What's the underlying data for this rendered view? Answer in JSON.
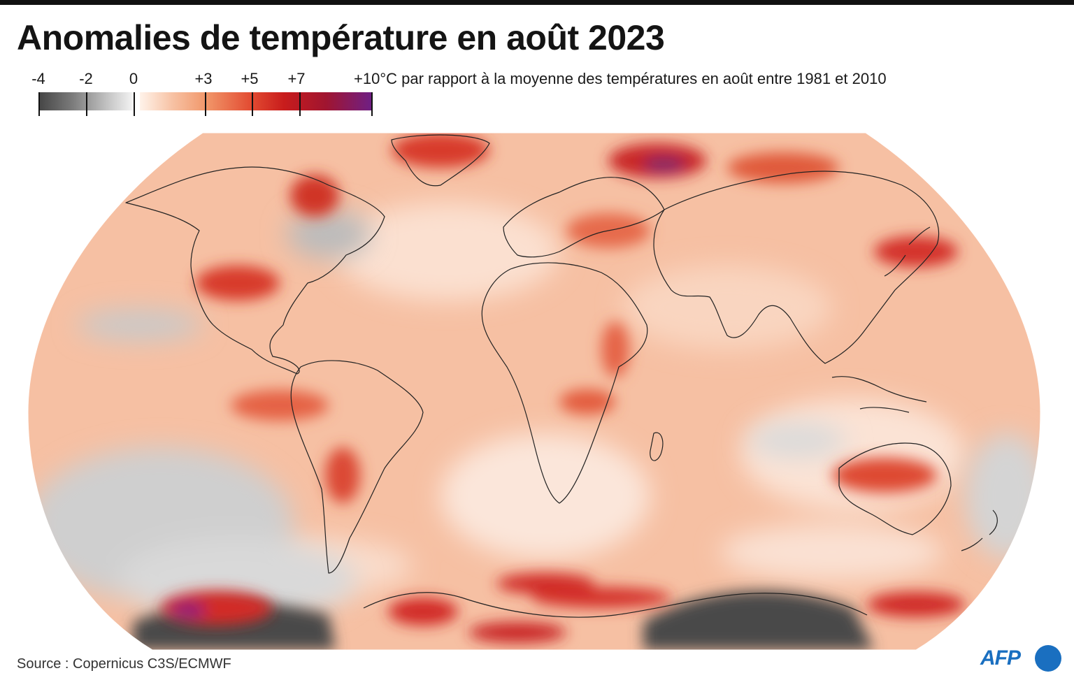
{
  "title": "Anomalies de température en août 2023",
  "legend": {
    "ticks": [
      "-4",
      "-2",
      "0",
      "+3",
      "+5",
      "+7"
    ],
    "caption": "+10°C par rapport à la moyenne des températures en août entre 1981 et 2010",
    "colors": {
      "neg_dark": "#454545",
      "neutral": "#f4f4f4",
      "pos_light": "#f7c2a4",
      "pos_mid": "#e24a31",
      "pos_strong": "#c81c1c",
      "pos_max": "#6e1f86"
    }
  },
  "map": {
    "projection": "Robinson-like world map",
    "background_color": "#f7bfa2"
  },
  "source": "Source : Copernicus C3S/ECMWF",
  "logo": {
    "text": "AFP",
    "color": "#1a6fc0"
  }
}
